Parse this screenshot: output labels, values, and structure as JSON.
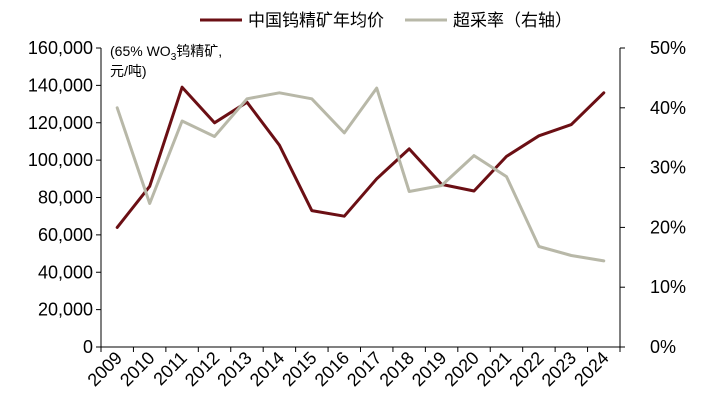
{
  "chart_data": {
    "type": "line",
    "title": "",
    "x": [
      "2009",
      "2010",
      "2011",
      "2012",
      "2013",
      "2014",
      "2015",
      "2016",
      "2017",
      "2018",
      "2019",
      "2020",
      "2021",
      "2022",
      "2023",
      "2024"
    ],
    "y_left": {
      "label_line1_pre": "(65% WO",
      "label_line1_sub": "3",
      "label_line1_post": "钨精矿,",
      "label_line2": "元/吨)",
      "range": [
        0,
        160000
      ],
      "ticks": [
        "0",
        "20,000",
        "40,000",
        "60,000",
        "80,000",
        "100,000",
        "120,000",
        "140,000",
        "160,000"
      ],
      "tick_values": [
        0,
        20000,
        40000,
        60000,
        80000,
        100000,
        120000,
        140000,
        160000
      ]
    },
    "y_right": {
      "label": "",
      "range": [
        0,
        50
      ],
      "ticks": [
        "0%",
        "10%",
        "20%",
        "30%",
        "40%",
        "50%"
      ],
      "tick_values": [
        0,
        10,
        20,
        30,
        40,
        50
      ]
    },
    "series": [
      {
        "name": "中国钨精矿年均价",
        "axis": "left",
        "color": "#6b0f14",
        "values": [
          64000,
          86000,
          139000,
          120000,
          131000,
          108000,
          73000,
          70000,
          90000,
          106000,
          87000,
          83500,
          102000,
          113000,
          119000,
          136000
        ]
      },
      {
        "name": "超采率（右轴）",
        "axis": "right",
        "color": "#b8b8a8",
        "values": [
          40.0,
          24.0,
          37.8,
          35.2,
          41.5,
          42.5,
          41.5,
          35.8,
          43.3,
          26.0,
          27.0,
          32.0,
          28.5,
          16.8,
          15.3,
          14.4
        ]
      }
    ],
    "grid": false,
    "legend_position": "top-center"
  }
}
